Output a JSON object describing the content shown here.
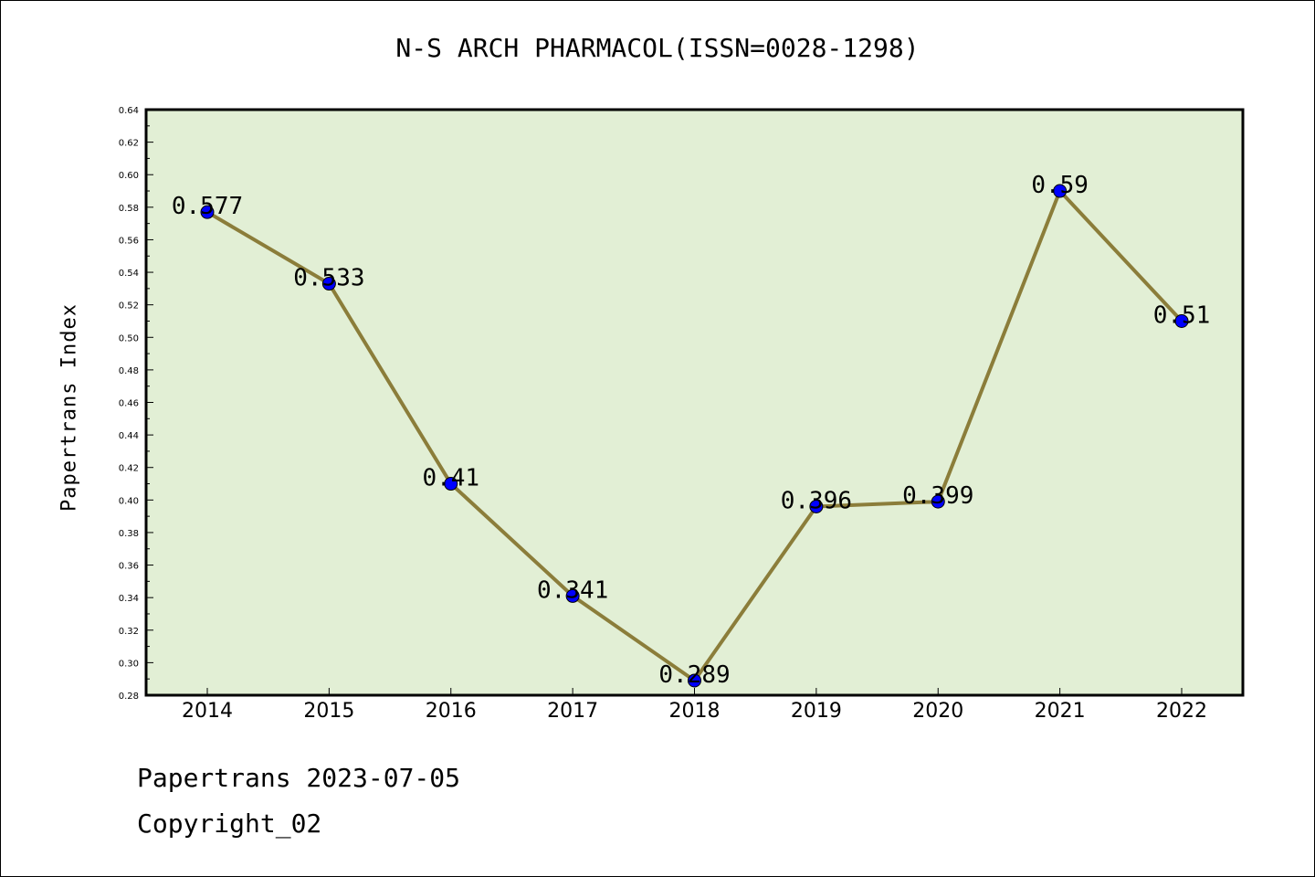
{
  "chart_data": {
    "type": "line",
    "title": "N-S ARCH PHARMACOL(ISSN=0028-1298)",
    "xlabel": "",
    "ylabel": "Papertrans Index",
    "categories": [
      "2014",
      "2015",
      "2016",
      "2017",
      "2018",
      "2019",
      "2020",
      "2021",
      "2022"
    ],
    "values": [
      0.577,
      0.533,
      0.41,
      0.341,
      0.289,
      0.396,
      0.399,
      0.59,
      0.51
    ],
    "data_labels": [
      "0.577",
      "0.533",
      "0.41",
      "0.341",
      "0.289",
      "0.396",
      "0.399",
      "0.59",
      "0.51"
    ],
    "ylim": [
      0.28,
      0.64
    ],
    "yticks": [
      "0.28",
      "0.30",
      "0.32",
      "0.34",
      "0.36",
      "0.38",
      "0.40",
      "0.42",
      "0.44",
      "0.46",
      "0.48",
      "0.50",
      "0.52",
      "0.54",
      "0.56",
      "0.58",
      "0.60",
      "0.62",
      "0.64"
    ],
    "grid": false,
    "colors": {
      "plot_bg": "#e2efd5",
      "line": "#8b7d3a",
      "marker": "#0000ff"
    }
  },
  "footer": {
    "line1": "Papertrans 2023-07-05",
    "line2": "Copyright_02"
  }
}
